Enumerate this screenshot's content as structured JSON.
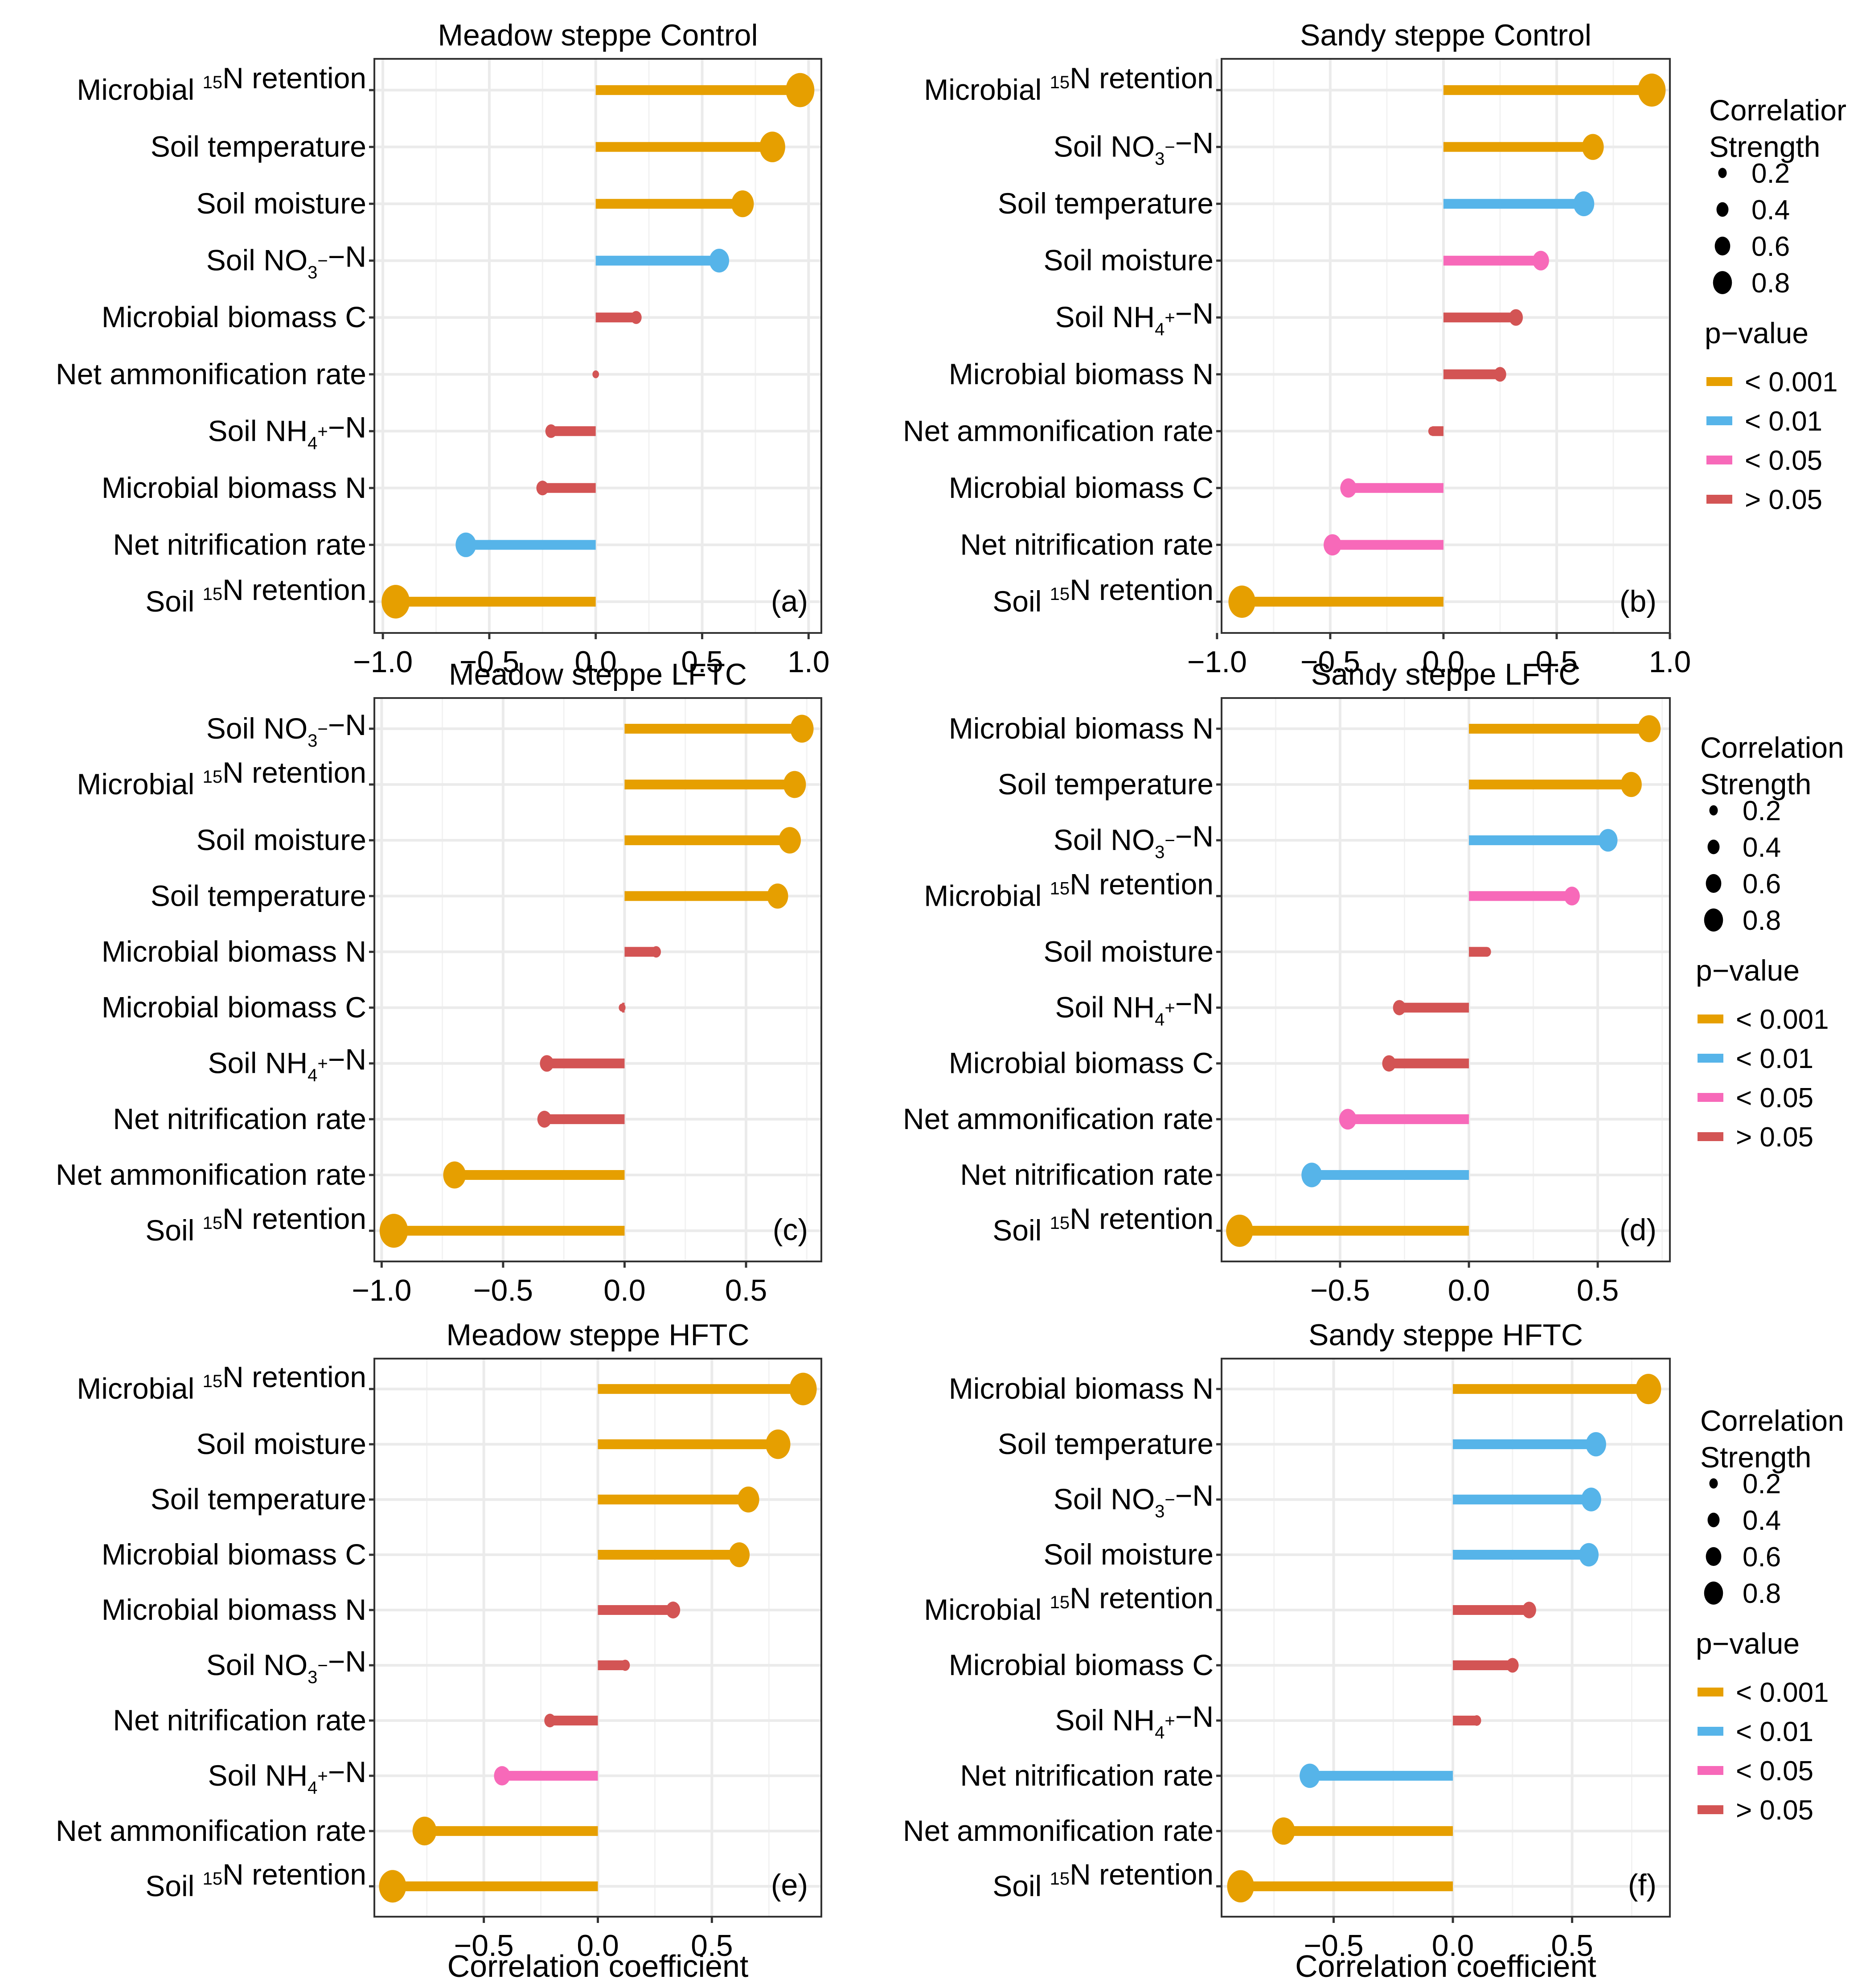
{
  "colors": {
    "p_lt_0001": "#E69F00",
    "p_lt_001": "#56B4E9",
    "p_lt_005": "#F769B9",
    "p_gt_005": "#D35454"
  },
  "chart_data": [
    {
      "type": "lollipop",
      "panel": "(a)",
      "title": "Meadow steppe Control",
      "xlabel": "",
      "xlim": [
        -1.04,
        1.06
      ],
      "xticks": [
        -1.0,
        -0.5,
        0.0,
        0.5,
        1.0
      ],
      "xtick_labels": [
        "−1.0",
        "−0.5",
        "0.0",
        "0.5",
        "1.0"
      ],
      "categories": [
        "Microbial 15N retention",
        "Soil temperature",
        "Soil moisture",
        "Soil NO3−-N",
        "Microbial biomass C",
        "Net ammonification rate",
        "Soil NH4+-N",
        "Microbial biomass N",
        "Net nitrification rate",
        "Soil 15N retention"
      ],
      "values": [
        0.96,
        0.83,
        0.69,
        0.58,
        0.19,
        0.0,
        -0.21,
        -0.25,
        -0.61,
        -0.94
      ],
      "pvalue": [
        "< 0.001",
        "< 0.001",
        "< 0.001",
        "< 0.01",
        "> 0.05",
        "> 0.05",
        "> 0.05",
        "> 0.05",
        "< 0.01",
        "< 0.001"
      ],
      "legend": false
    },
    {
      "type": "lollipop",
      "panel": "(b)",
      "title": "Sandy steppe Control",
      "xlabel": "",
      "xlim": [
        -0.98,
        1.0
      ],
      "xticks": [
        -1.0,
        -0.5,
        0.0,
        0.5,
        1.0
      ],
      "xtick_labels": [
        "−1.0",
        "−0.5",
        "0.0",
        "0.5",
        "1.0"
      ],
      "categories": [
        "Microbial 15N retention",
        "Soil NO3−-N",
        "Soil temperature",
        "Soil moisture",
        "Soil NH4+-N",
        "Microbial biomass N",
        "Net ammonification rate",
        "Microbial biomass C",
        "Net nitrification rate",
        "Soil 15N retention"
      ],
      "values": [
        0.92,
        0.66,
        0.62,
        0.43,
        0.32,
        0.25,
        -0.05,
        -0.42,
        -0.49,
        -0.89
      ],
      "pvalue": [
        "< 0.001",
        "< 0.001",
        "< 0.01",
        "< 0.05",
        "> 0.05",
        "> 0.05",
        "> 0.05",
        "< 0.05",
        "< 0.05",
        "< 0.001"
      ],
      "legend": true,
      "legend_size_title": "Correlatior\nStrength"
    },
    {
      "type": "lollipop",
      "panel": "(c)",
      "title": "Meadow steppe LFTC",
      "xlabel": "",
      "xlim": [
        -1.03,
        0.81
      ],
      "xticks": [
        -1.0,
        -0.5,
        0.0,
        0.5
      ],
      "xtick_labels": [
        "−1.0",
        "−0.5",
        "0.0",
        "0.5"
      ],
      "categories": [
        "Soil NO3−-N",
        "Microbial 15N retention",
        "Soil moisture",
        "Soil temperature",
        "Microbial biomass N",
        "Microbial biomass C",
        "Soil NH4+-N",
        "Net nitrification rate",
        "Net ammonification rate",
        "Soil 15N retention"
      ],
      "values": [
        0.73,
        0.7,
        0.68,
        0.63,
        0.13,
        -0.01,
        -0.32,
        -0.33,
        -0.7,
        -0.95
      ],
      "pvalue": [
        "< 0.001",
        "< 0.001",
        "< 0.001",
        "< 0.001",
        "> 0.05",
        "> 0.05",
        "> 0.05",
        "> 0.05",
        "< 0.001",
        "< 0.001"
      ],
      "legend": false
    },
    {
      "type": "lollipop",
      "panel": "(d)",
      "title": "Sandy steppe LFTC",
      "xlabel": "",
      "xlim": [
        -0.96,
        0.78
      ],
      "xticks": [
        -0.5,
        0.0,
        0.5
      ],
      "xtick_labels": [
        "−0.5",
        "0.0",
        "0.5"
      ],
      "categories": [
        "Microbial biomass N",
        "Soil temperature",
        "Soil NO3−-N",
        "Microbial 15N retention",
        "Soil moisture",
        "Soil NH4+-N",
        "Microbial biomass C",
        "Net ammonification rate",
        "Net nitrification rate",
        "Soil 15N retention"
      ],
      "values": [
        0.7,
        0.63,
        0.54,
        0.4,
        0.07,
        -0.27,
        -0.31,
        -0.47,
        -0.61,
        -0.89
      ],
      "pvalue": [
        "< 0.001",
        "< 0.001",
        "< 0.01",
        "< 0.05",
        "> 0.05",
        "> 0.05",
        "> 0.05",
        "< 0.05",
        "< 0.01",
        "< 0.001"
      ],
      "legend": true,
      "legend_size_title": "Correlation\nStrength"
    },
    {
      "type": "lollipop",
      "panel": "(e)",
      "title": "Meadow steppe HFTC",
      "xlabel": "Correlation coefficient",
      "xlim": [
        -0.98,
        0.98
      ],
      "xticks": [
        -0.5,
        0.0,
        0.5
      ],
      "xtick_labels": [
        "−0.5",
        "0.0",
        "0.5"
      ],
      "categories": [
        "Microbial 15N retention",
        "Soil moisture",
        "Soil temperature",
        "Microbial biomass C",
        "Microbial biomass N",
        "Soil NO3−-N",
        "Net nitrification rate",
        "Soil NH4+-N",
        "Net ammonification rate",
        "Soil 15N retention"
      ],
      "values": [
        0.9,
        0.79,
        0.66,
        0.62,
        0.33,
        0.12,
        -0.21,
        -0.42,
        -0.76,
        -0.9
      ],
      "pvalue": [
        "< 0.001",
        "< 0.001",
        "< 0.001",
        "< 0.001",
        "> 0.05",
        "> 0.05",
        "> 0.05",
        "< 0.05",
        "< 0.001",
        "< 0.001"
      ],
      "legend": false
    },
    {
      "type": "lollipop",
      "panel": "(f)",
      "title": "Sandy steppe HFTC",
      "xlabel": "Correlation coefficient",
      "xlim": [
        -0.97,
        0.91
      ],
      "xticks": [
        -0.5,
        0.0,
        0.5
      ],
      "xtick_labels": [
        "−0.5",
        "0.0",
        "0.5"
      ],
      "categories": [
        "Microbial biomass N",
        "Soil temperature",
        "Soil NO3−-N",
        "Soil moisture",
        "Microbial 15N retention",
        "Microbial biomass C",
        "Soil NH4+-N",
        "Net nitrification rate",
        "Net ammonification rate",
        "Soil 15N retention"
      ],
      "values": [
        0.82,
        0.6,
        0.58,
        0.57,
        0.32,
        0.25,
        0.1,
        -0.6,
        -0.71,
        -0.89
      ],
      "pvalue": [
        "< 0.001",
        "< 0.01",
        "< 0.01",
        "< 0.01",
        "> 0.05",
        "> 0.05",
        "> 0.05",
        "< 0.01",
        "< 0.001",
        "< 0.001"
      ],
      "legend": true,
      "legend_size_title": "Correlation\nStrength"
    }
  ],
  "legend": {
    "size_values": [
      "0.2",
      "0.4",
      "0.6",
      "0.8"
    ],
    "pvalue_title": "p−value",
    "pvalue_levels": [
      "< 0.001",
      "< 0.01",
      "< 0.05",
      "> 0.05"
    ]
  }
}
